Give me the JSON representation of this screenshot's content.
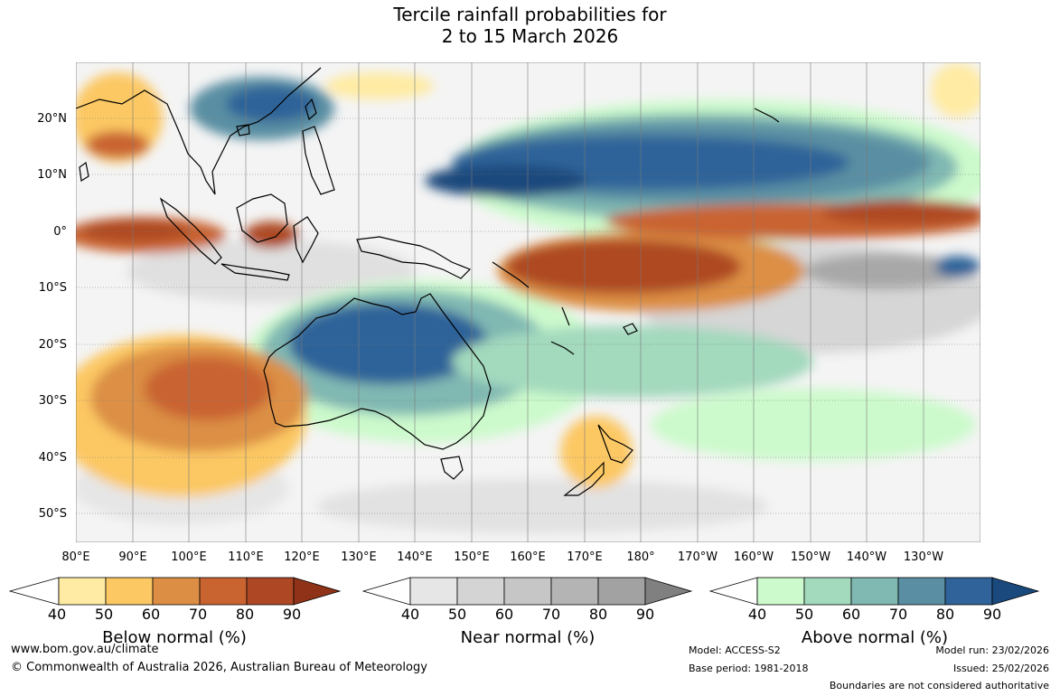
{
  "title": {
    "line1": "Tercile rainfall probabilities for",
    "line2": "2 to 15 March 2026"
  },
  "lat_labels": [
    "20°N",
    "10°N",
    "0°",
    "10°S",
    "20°S",
    "30°S",
    "40°S",
    "50°S"
  ],
  "lon_labels": [
    "80°E",
    "90°E",
    "100°E",
    "110°E",
    "120°E",
    "130°E",
    "140°E",
    "150°E",
    "160°E",
    "170°E",
    "180°",
    "170°W",
    "160°W",
    "150°W",
    "140°W",
    "130°W"
  ],
  "colorbars": [
    {
      "name": "below",
      "title": "Below normal (%)",
      "colors": [
        "#ffeba3",
        "#fcc864",
        "#dc8f44",
        "#c96431",
        "#ae4824",
        "#8f3217"
      ],
      "ticks": [
        "40",
        "50",
        "60",
        "70",
        "80",
        "90"
      ]
    },
    {
      "name": "near",
      "title": "Near normal (%)",
      "colors": [
        "#e6e6e6",
        "#d4d4d4",
        "#c6c6c6",
        "#b4b4b4",
        "#a2a2a2",
        "#808080"
      ],
      "ticks": [
        "40",
        "50",
        "60",
        "70",
        "80",
        "90"
      ]
    },
    {
      "name": "above",
      "title": "Above normal (%)",
      "colors": [
        "#ccfacc",
        "#a3d9bd",
        "#80b8b2",
        "#5a8fa3",
        "#2f6399",
        "#1a4a7d"
      ],
      "ticks": [
        "40",
        "50",
        "60",
        "70",
        "80",
        "90"
      ]
    }
  ],
  "footer": {
    "website": "www.bom.gov.au/climate",
    "copyright": "© Commonwealth of Australia 2026, Australian Bureau of Meteorology",
    "model": "Model: ACCESS-S2",
    "base_period": "Base period: 1981-2018",
    "model_run": "Model run: 23/02/2026",
    "issued": "Issued: 25/02/2026",
    "disclaimer": "Boundaries are not considered authoritative"
  },
  "colors": {
    "below_strong": "#ae4824",
    "near_mid": "#c6c6c6",
    "above_strong": "#2f6399",
    "coastline": "#000000"
  }
}
